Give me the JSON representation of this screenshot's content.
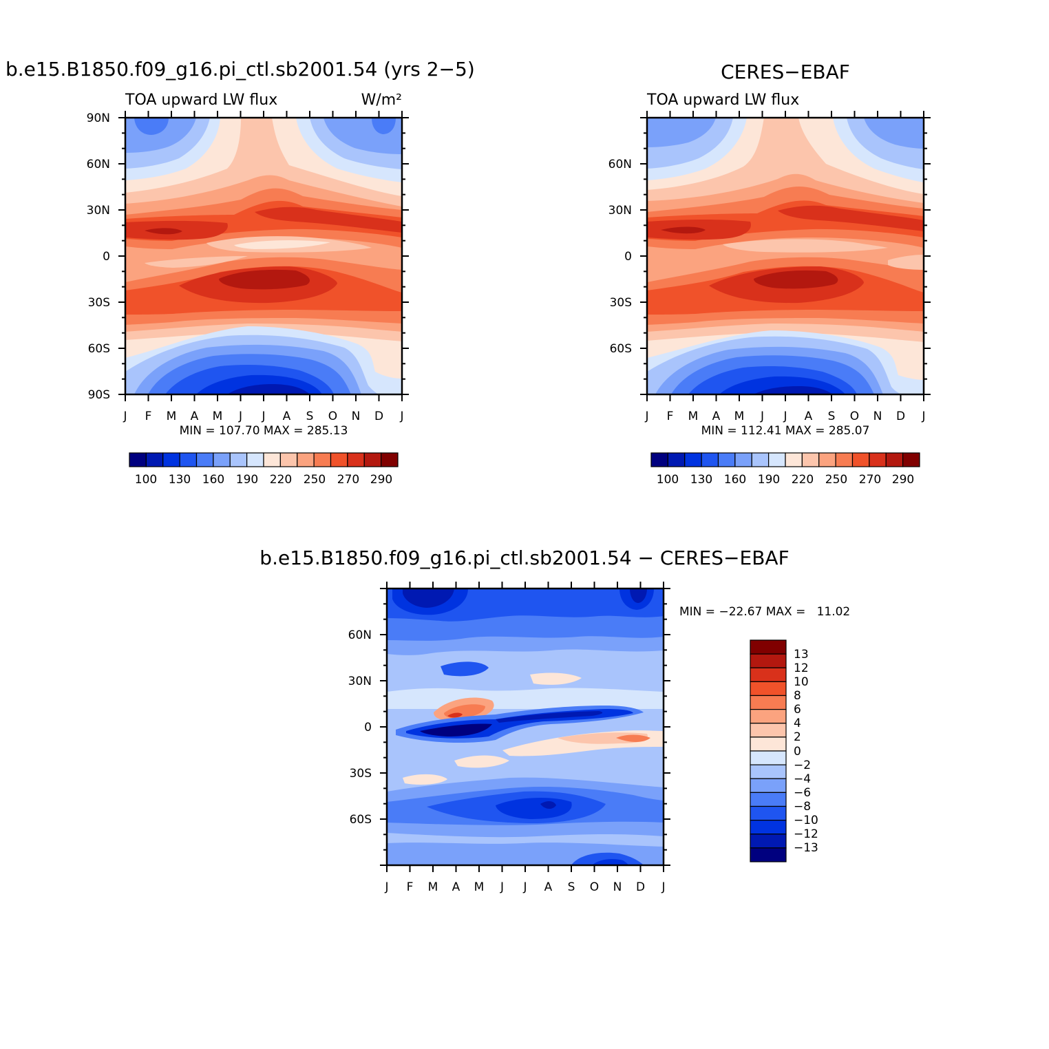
{
  "months": [
    "J",
    "F",
    "M",
    "A",
    "M",
    "J",
    "J",
    "A",
    "S",
    "O",
    "N",
    "D",
    "J"
  ],
  "colorbar_colors": [
    "#00007f",
    "#0019b2",
    "#0033e0",
    "#1f55f0",
    "#4a7cf7",
    "#7aa1fa",
    "#a9c4fc",
    "#d6e6fd",
    "#fde6d8",
    "#fcc5ac",
    "#fba37f",
    "#f77c52",
    "#f0522a",
    "#d9311b",
    "#b3180f",
    "#800000"
  ],
  "chart_data": [
    {
      "type": "heatmap",
      "title": "b.e15.B1850.f09_g16.pi_ctl.sb2001.54 (yrs 2−5)",
      "left_label": "TOA upward LW flux",
      "right_label": "W/m²",
      "xlabel": "",
      "ylabel": "",
      "x_ticks": [
        "J",
        "F",
        "M",
        "A",
        "M",
        "J",
        "J",
        "A",
        "S",
        "O",
        "N",
        "D",
        "J"
      ],
      "y_ticks": [
        "90N",
        "60N",
        "30N",
        "0",
        "30S",
        "60S",
        "90S"
      ],
      "ylim": [
        -90,
        90
      ],
      "stats": "MIN = 107.70 MAX = 285.13",
      "colorbar_labels": [
        "100",
        "130",
        "160",
        "190",
        "220",
        "250",
        "270",
        "290"
      ]
    },
    {
      "type": "heatmap",
      "title": "CERES−EBAF",
      "left_label": "TOA upward LW flux",
      "right_label": "",
      "xlabel": "",
      "ylabel": "",
      "x_ticks": [
        "J",
        "F",
        "M",
        "A",
        "M",
        "J",
        "J",
        "A",
        "S",
        "O",
        "N",
        "D",
        "J"
      ],
      "y_ticks": [
        "60N",
        "30N",
        "0",
        "30S",
        "60S"
      ],
      "ylim": [
        -90,
        90
      ],
      "stats": "MIN = 112.41 MAX = 285.07",
      "colorbar_labels": [
        "100",
        "130",
        "160",
        "190",
        "220",
        "250",
        "270",
        "290"
      ]
    },
    {
      "type": "heatmap",
      "title": "b.e15.B1850.f09_g16.pi_ctl.sb2001.54 − CERES−EBAF",
      "xlabel": "",
      "ylabel": "",
      "x_ticks": [
        "J",
        "F",
        "M",
        "A",
        "M",
        "J",
        "J",
        "A",
        "S",
        "O",
        "N",
        "D",
        "J"
      ],
      "y_ticks": [
        "60N",
        "30N",
        "0",
        "30S",
        "60S"
      ],
      "ylim": [
        -90,
        90
      ],
      "stats": "MIN = −22.67 MAX =   11.02",
      "colorbar_labels": [
        "13",
        "12",
        "10",
        "8",
        "6",
        "4",
        "2",
        "0",
        "−2",
        "−4",
        "−6",
        "−8",
        "−10",
        "−12",
        "−13"
      ]
    }
  ]
}
